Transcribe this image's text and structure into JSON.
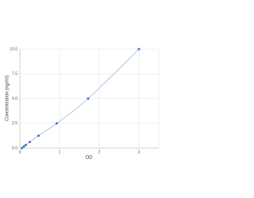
{
  "chart_data": {
    "type": "scatter",
    "x_label": "OD",
    "y_label": "Concentration (ng/ml)",
    "x": [
      0.05,
      0.1,
      0.15,
      0.25,
      0.47,
      0.93,
      1.72,
      3.0
    ],
    "series": [
      {
        "color": "#3f74c4",
        "line_color": "#9dbbe6",
        "values": [
          0,
          0.156,
          0.312,
          0.625,
          1.25,
          2.5,
          5,
          10
        ]
      }
    ],
    "xlim": [
      0,
      3.5
    ],
    "xticks": [
      0,
      1,
      2,
      3
    ],
    "ylim": [
      0,
      10
    ],
    "yticks": [
      {
        "value": 0,
        "label": "0.0"
      },
      {
        "value": 2.5,
        "label": "2.5"
      },
      {
        "value": 5,
        "label": "5.0"
      },
      {
        "value": 7.5,
        "label": "7.5"
      },
      {
        "value": 10,
        "label": "10.0"
      }
    ],
    "grid": true
  }
}
